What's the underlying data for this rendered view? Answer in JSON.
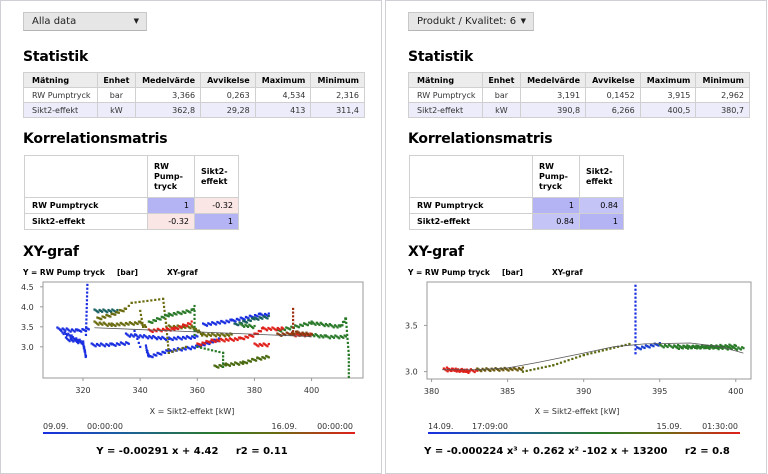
{
  "panels": [
    {
      "dropdown": "Alla data",
      "stat_title": "Statistik",
      "stat_headers": [
        "Mätning",
        "Enhet",
        "Medelvärde",
        "Avvikelse",
        "Maximum",
        "Minimum"
      ],
      "stat_rows": [
        [
          "RW Pumptryck",
          "bar",
          "3,366",
          "0,263",
          "4,534",
          "2,316"
        ],
        [
          "Sikt2-effekt",
          "kW",
          "362,8",
          "29,28",
          "413",
          "311,4"
        ]
      ],
      "corr_title": "Korrelationsmatris",
      "corr_headers": [
        "RW Pump- tryck",
        "Sikt2- effekt"
      ],
      "corr_rows": [
        {
          "label": "RW Pumptryck",
          "values": [
            "1",
            "-0.32"
          ]
        },
        {
          "label": "Sikt2-effekt",
          "values": [
            "-0.32",
            "1"
          ]
        }
      ],
      "corr_colors": [
        [
          "#b4b4f5",
          "#fbe6e6"
        ],
        [
          "#fbe6e6",
          "#b4b4f5"
        ]
      ],
      "xy_title": "XY-graf",
      "y_label": "Y = RW Pump tryck",
      "y_unit": "[bar]",
      "chart_name": "XY-graf",
      "x_label": "X = Sikt2-effekt [kW]",
      "time_start_date": "09.09.",
      "time_start_time": "00:00:00",
      "time_end_date": "16.09.",
      "time_end_time": "00:00:00",
      "equation": "Y = -0.00291 x + 4.42     r2 = 0.11"
    },
    {
      "dropdown": "Produkt / Kvalitet: 6",
      "stat_title": "Statistik",
      "stat_headers": [
        "Mätning",
        "Enhet",
        "Medelvärde",
        "Avvikelse",
        "Maximum",
        "Minimum"
      ],
      "stat_rows": [
        [
          "RW Pumptryck",
          "bar",
          "3,191",
          "0,1452",
          "3,915",
          "2,962"
        ],
        [
          "Sikt2-effekt",
          "kW",
          "390,8",
          "6,266",
          "400,5",
          "380,7"
        ]
      ],
      "corr_title": "Korrelationsmatris",
      "corr_headers": [
        "RW Pump- tryck",
        "Sikt2- effekt"
      ],
      "corr_rows": [
        {
          "label": "RW Pumptryck",
          "values": [
            "1",
            "0.84"
          ]
        },
        {
          "label": "Sikt2-effekt",
          "values": [
            "0.84",
            "1"
          ]
        }
      ],
      "corr_colors": [
        [
          "#b4b4f5",
          "#c4c4f7"
        ],
        [
          "#c4c4f7",
          "#b4b4f5"
        ]
      ],
      "xy_title": "XY-graf",
      "y_label": "Y = RW Pump tryck",
      "y_unit": "[bar]",
      "chart_name": "XY-graf",
      "x_label": "X = Sikt2-effekt [kW]",
      "time_start_date": "14.09.",
      "time_start_time": "17:09:00",
      "time_end_date": "15.09.",
      "time_end_time": "01:30:00",
      "equation": "Y = -0.000224 x³ + 0.262 x² -102 x + 13200     r2 = 0.8"
    }
  ],
  "chart_data": [
    {
      "type": "scatter",
      "title": "XY-graf",
      "xlabel": "X = Sikt2-effekt [kW]",
      "ylabel": "Y = RW Pump tryck [bar]",
      "xlim": [
        306,
        418
      ],
      "ylim": [
        2.22,
        4.62
      ],
      "xticks": [
        320,
        340,
        360,
        380,
        400
      ],
      "yticks": [
        3.0,
        3.5,
        4.0,
        4.5
      ],
      "ytick_labels": [
        "3.0",
        "3.5",
        "4.0",
        "4.5"
      ],
      "grid": false,
      "fit": {
        "kind": "linear",
        "slope": -0.00291,
        "intercept": 4.42,
        "x_range": [
          324,
          400
        ]
      },
      "series": [
        {
          "color": "#1a2fe0",
          "density": "dense",
          "paths": [
            [
              [
                311,
                3.45
              ],
              [
                318,
                3.4
              ],
              [
                322,
                3.45
              ]
            ],
            [
              [
                312,
                3.4
              ],
              [
                316,
                3.25
              ],
              [
                320,
                3.1
              ]
            ],
            [
              [
                314,
                3.2
              ],
              [
                320,
                3.1
              ],
              [
                321,
                2.75
              ]
            ],
            [
              [
                323,
                3.05
              ],
              [
                330,
                3.05
              ],
              [
                336,
                3.1
              ]
            ],
            [
              [
                335,
                3.3
              ],
              [
                350,
                3.2
              ],
              [
                360,
                3.25
              ]
            ],
            [
              [
                342,
                3.0
              ],
              [
                343,
                2.75
              ],
              [
                350,
                2.9
              ],
              [
                360,
                3.0
              ],
              [
                368,
                3.2
              ]
            ],
            [
              [
                362,
                3.55
              ],
              [
                372,
                3.65
              ],
              [
                382,
                3.8
              ],
              [
                385,
                3.8
              ]
            ]
          ]
        },
        {
          "color": "#1a2fe0",
          "density": "sparse",
          "paths": [
            [
              [
                321,
                3.3
              ],
              [
                321.5,
                4.55
              ]
            ],
            [
              [
                338,
                3.4
              ],
              [
                340,
                3.0
              ]
            ]
          ]
        },
        {
          "color": "#1a6060",
          "density": "dense",
          "paths": [
            [
              [
                324,
                3.9
              ],
              [
                332,
                3.9
              ]
            ],
            [
              [
                373,
                3.55
              ],
              [
                380,
                3.7
              ],
              [
                385,
                3.75
              ]
            ]
          ]
        },
        {
          "color": "#6b6b10",
          "density": "dense",
          "paths": [
            [
              [
                324,
                3.6
              ],
              [
                330,
                3.55
              ],
              [
                340,
                3.6
              ],
              [
                342,
                3.5
              ]
            ],
            [
              [
                350,
                3.5
              ],
              [
                358,
                3.5
              ],
              [
                362,
                3.3
              ],
              [
                372,
                3.3
              ]
            ],
            [
              [
                325,
                3.7
              ],
              [
                330,
                3.8
              ],
              [
                335,
                3.95
              ]
            ]
          ]
        },
        {
          "color": "#6b6b10",
          "density": "sparse",
          "paths": [
            [
              [
                335,
                3.95
              ],
              [
                337,
                4.1
              ],
              [
                348,
                4.2
              ],
              [
                349,
                3.6
              ],
              [
                350,
                2.85
              ],
              [
                356,
                3.0
              ]
            ],
            [
              [
                340,
                3.9
              ],
              [
                341,
                3.5
              ]
            ]
          ]
        },
        {
          "color": "#2a7a2a",
          "density": "dense",
          "paths": [
            [
              [
                343,
                3.6
              ],
              [
                350,
                3.8
              ],
              [
                358,
                3.9
              ],
              [
                359,
                4.0
              ]
            ],
            [
              [
                375,
                3.55
              ],
              [
                380,
                3.5
              ]
            ],
            [
              [
                388,
                3.4
              ],
              [
                400,
                3.6
              ],
              [
                410,
                3.5
              ],
              [
                412,
                3.7
              ]
            ],
            [
              [
                395,
                3.35
              ],
              [
                405,
                3.25
              ],
              [
                412,
                3.25
              ]
            ]
          ]
        },
        {
          "color": "#4a6a10",
          "density": "dense",
          "paths": [
            [
              [
                366,
                2.5
              ],
              [
                370,
                2.55
              ],
              [
                376,
                2.6
              ],
              [
                381,
                2.7
              ],
              [
                385,
                2.75
              ]
            ]
          ]
        },
        {
          "color": "#2a7a2a",
          "density": "sparse",
          "paths": [
            [
              [
                412,
                3.7
              ],
              [
                413,
                2.8
              ],
              [
                413,
                2.25
              ]
            ],
            [
              [
                369,
                2.85
              ],
              [
                369,
                2.5
              ]
            ],
            [
              [
                360,
                3.0
              ],
              [
                369,
                2.85
              ]
            ],
            [
              [
                359,
                3.9
              ],
              [
                359,
                3.3
              ]
            ]
          ]
        },
        {
          "color": "#e0201a",
          "density": "dense",
          "paths": [
            [
              [
                343,
                3.4
              ],
              [
                352,
                3.45
              ],
              [
                358,
                3.6
              ]
            ],
            [
              [
                360,
                3.05
              ],
              [
                365,
                3.15
              ],
              [
                375,
                3.2
              ],
              [
                380,
                3.3
              ],
              [
                383,
                3.45
              ],
              [
                390,
                3.45
              ]
            ],
            [
              [
                380,
                3.05
              ],
              [
                385,
                3.05
              ]
            ],
            [
              [
                393,
                3.3
              ],
              [
                400,
                3.3
              ]
            ]
          ]
        },
        {
          "color": "#a03010",
          "density": "sparse",
          "paths": [
            [
              [
                393.5,
                3.3
              ],
              [
                393.5,
                3.95
              ]
            ]
          ]
        },
        {
          "color": "#8a3a10",
          "density": "dense",
          "paths": [
            [
              [
                388,
                3.3
              ],
              [
                395,
                3.35
              ],
              [
                400,
                3.3
              ]
            ]
          ]
        }
      ]
    },
    {
      "type": "scatter",
      "title": "XY-graf",
      "xlabel": "X = Sikt2-effekt [kW]",
      "ylabel": "Y = RW Pump tryck [bar]",
      "xlim": [
        379.7,
        401
      ],
      "ylim": [
        2.92,
        3.97
      ],
      "xticks": [
        380,
        385,
        390,
        395,
        400
      ],
      "yticks": [
        3.0,
        3.5
      ],
      "ytick_labels": [
        "3.0",
        "3.5"
      ],
      "grid": false,
      "fit": {
        "kind": "cubic",
        "points": [
          [
            380.7,
            3.02
          ],
          [
            383,
            3.02
          ],
          [
            385,
            3.04
          ],
          [
            387,
            3.1
          ],
          [
            390,
            3.2
          ],
          [
            392,
            3.27
          ],
          [
            394,
            3.3
          ],
          [
            397,
            3.31
          ],
          [
            399,
            3.27
          ],
          [
            400.5,
            3.2
          ]
        ]
      },
      "series": [
        {
          "color": "#e0201a",
          "density": "dense",
          "paths": [
            [
              [
                380.8,
                3.02
              ],
              [
                383,
                3.01
              ]
            ],
            [
              [
                381,
                3.03
              ],
              [
                382.5,
                3.0
              ]
            ]
          ]
        },
        {
          "color": "#6b5a10",
          "density": "dense",
          "paths": [
            [
              [
                383,
                3.02
              ],
              [
                386,
                3.03
              ]
            ]
          ]
        },
        {
          "color": "#5a6a10",
          "density": "sparse",
          "paths": [
            [
              [
                386,
                3.0
              ],
              [
                388,
                3.07
              ],
              [
                390,
                3.18
              ],
              [
                393,
                3.3
              ]
            ]
          ]
        },
        {
          "color": "#1a2fe0",
          "density": "sparse",
          "paths": [
            [
              [
                393.4,
                3.2
              ],
              [
                393.4,
                3.93
              ]
            ]
          ]
        },
        {
          "color": "#1a3fd0",
          "density": "dense",
          "paths": [
            [
              [
                393.5,
                3.25
              ],
              [
                395,
                3.3
              ]
            ]
          ]
        },
        {
          "color": "#2a7a2a",
          "density": "dense",
          "paths": [
            [
              [
                395,
                3.28
              ],
              [
                400.5,
                3.25
              ]
            ],
            [
              [
                396,
                3.26
              ],
              [
                400,
                3.28
              ]
            ]
          ]
        }
      ]
    }
  ]
}
